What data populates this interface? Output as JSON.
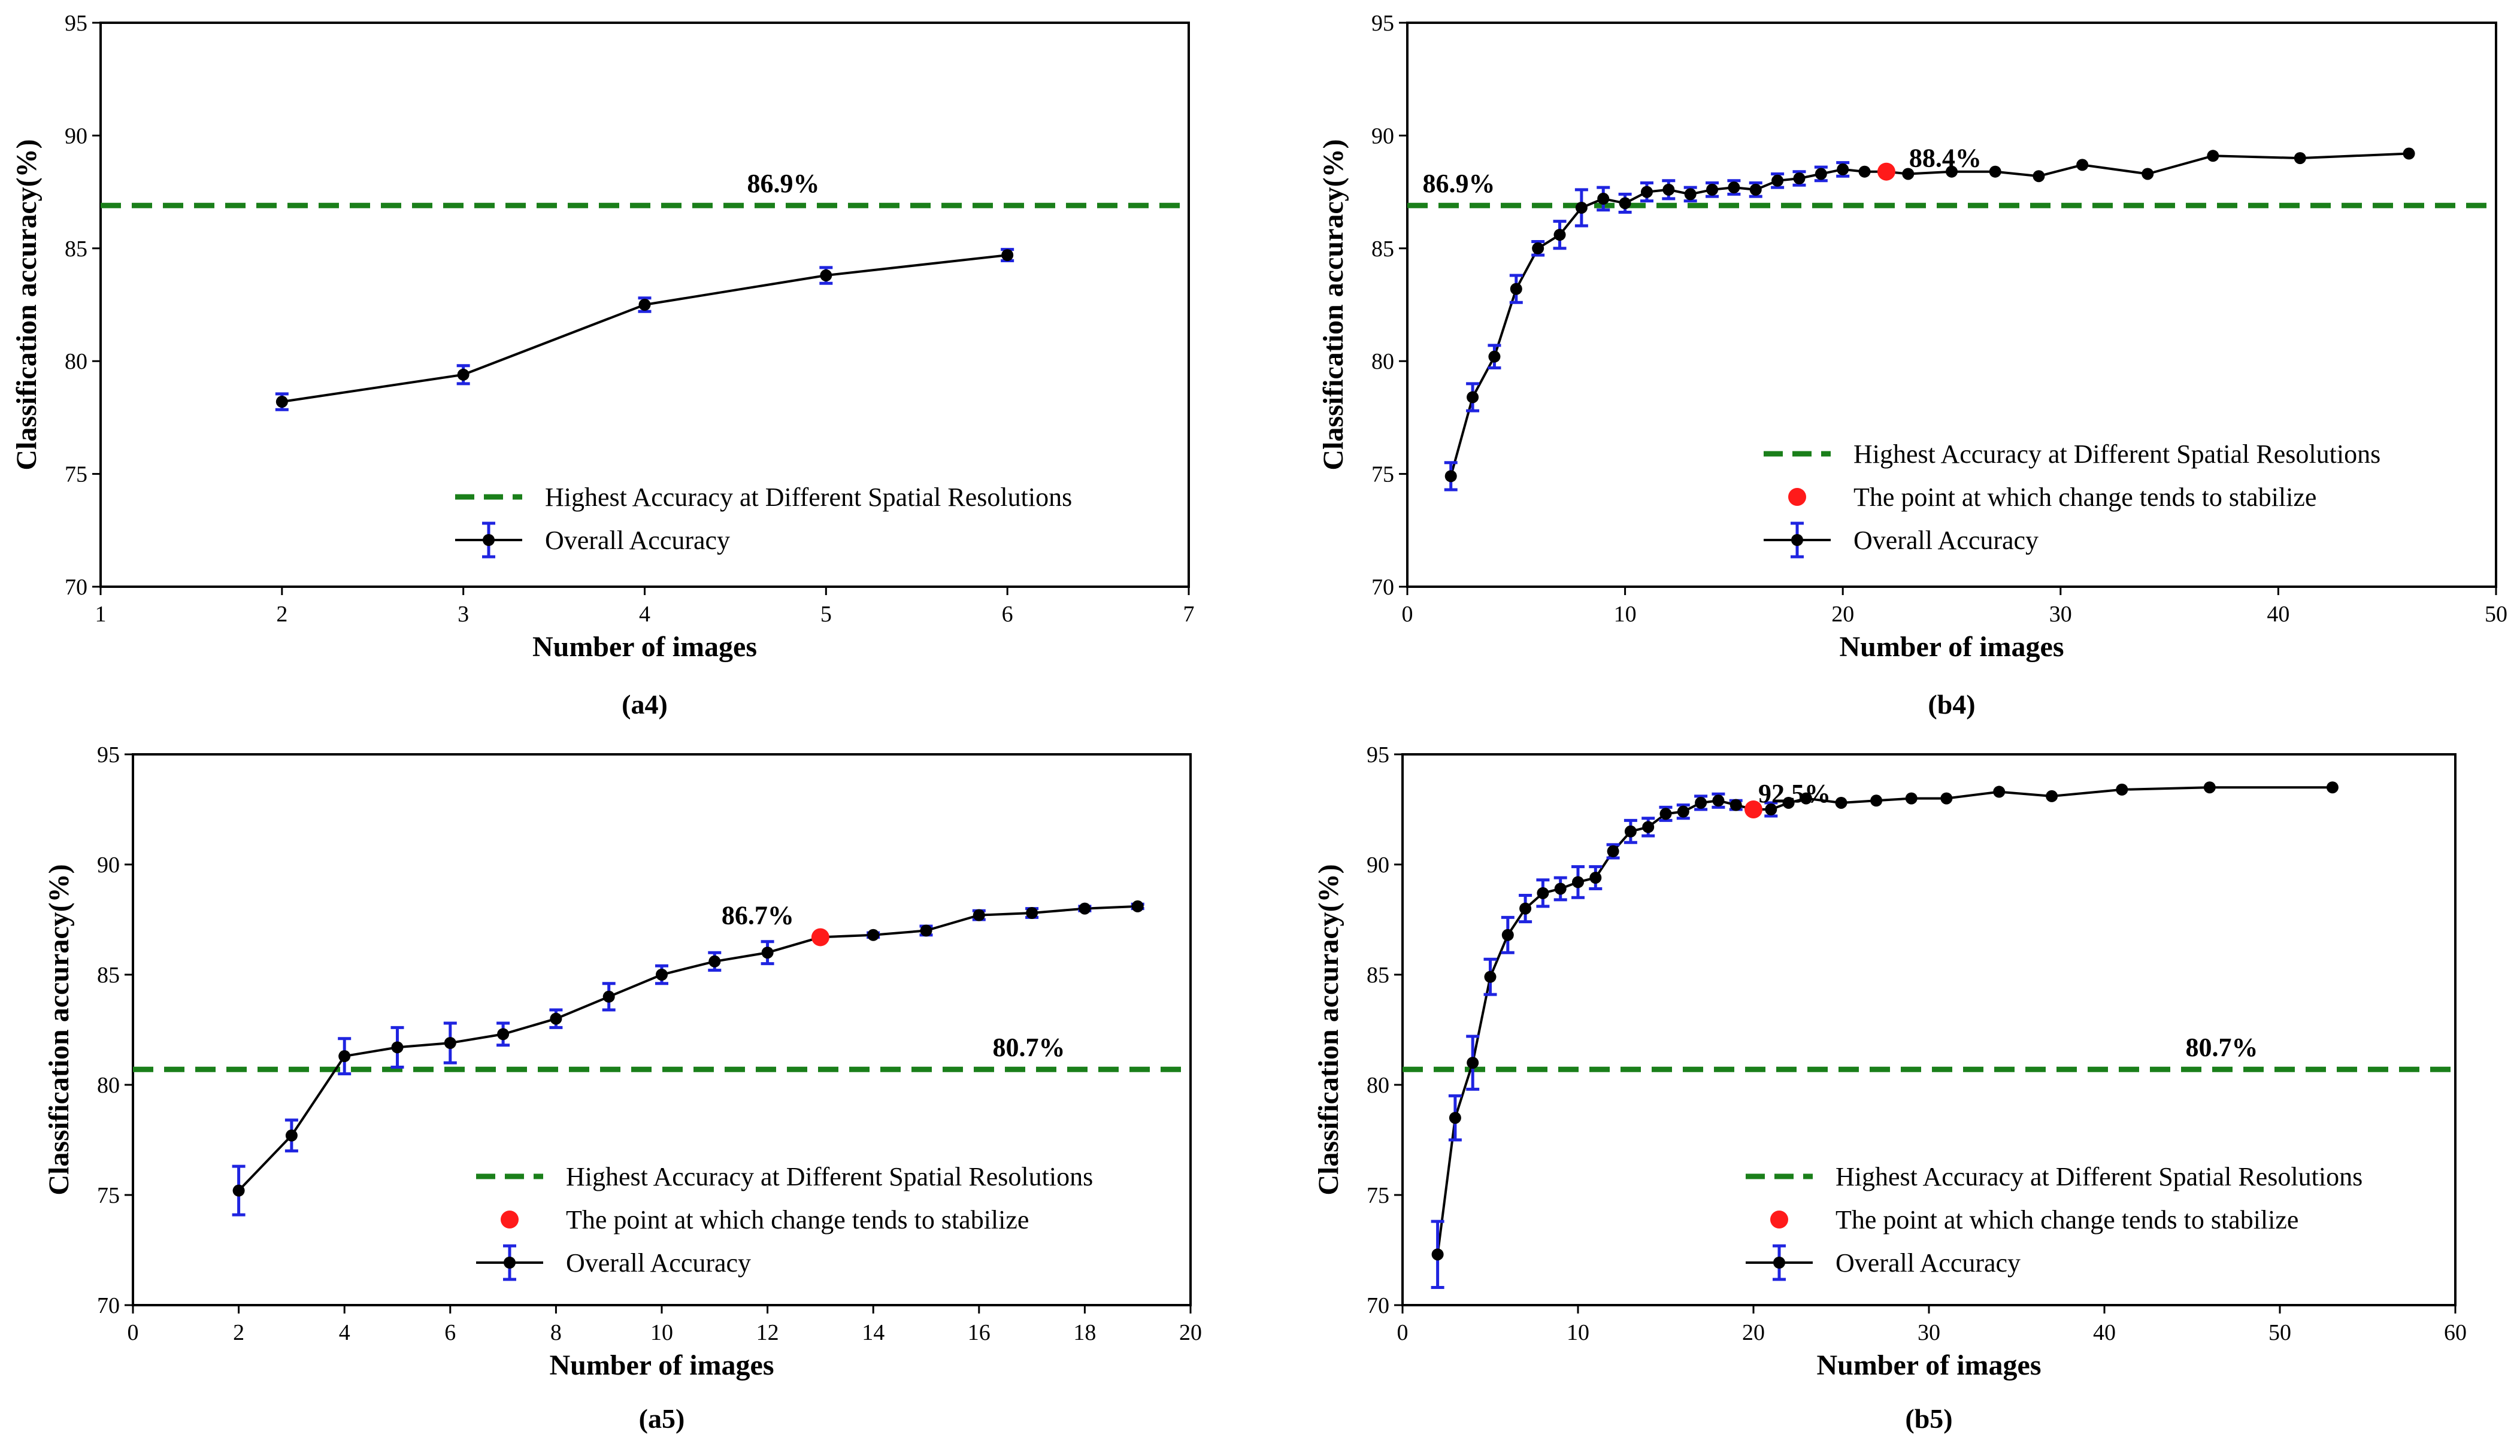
{
  "colors": {
    "reference_line": "#1a7f1a",
    "series_line": "#000000",
    "error_bar": "#1f24e0",
    "stable_point": "#ff1a1a"
  },
  "legend_labels": {
    "reference": "Highest Accuracy at Different Spatial Resolutions",
    "stable": "The point at which change tends to stabilize",
    "overall": "Overall Accuracy"
  },
  "chart_data": [
    {
      "id": "a4",
      "type": "line",
      "caption": "(a4)",
      "xlabel": "Number of images",
      "ylabel": "Classification accuracy(%)",
      "xlim": [
        1,
        7
      ],
      "ylim": [
        70,
        95
      ],
      "xticks": [
        1,
        2,
        3,
        4,
        5,
        6,
        7
      ],
      "yticks": [
        70,
        75,
        80,
        85,
        90,
        95
      ],
      "reference": {
        "value": 86.9,
        "label": "86.9%"
      },
      "series": [
        {
          "name": "Overall Accuracy",
          "x": [
            2,
            3,
            4,
            5,
            6
          ],
          "y": [
            78.2,
            79.4,
            82.5,
            83.8,
            84.7
          ],
          "err": [
            0.35,
            0.4,
            0.3,
            0.35,
            0.25
          ]
        }
      ],
      "legend": [
        "reference",
        "overall"
      ],
      "legend_position": "lower-right"
    },
    {
      "id": "b4",
      "type": "line",
      "caption": "(b4)",
      "xlabel": "Number of images",
      "ylabel": "Classification accuracy(%)",
      "xlim": [
        0,
        50
      ],
      "ylim": [
        70,
        95
      ],
      "xticks": [
        0,
        10,
        20,
        30,
        40,
        50
      ],
      "yticks": [
        70,
        75,
        80,
        85,
        90,
        95
      ],
      "reference": {
        "value": 86.9,
        "label": "86.9%"
      },
      "stable_point": {
        "x": 22,
        "y": 88.4,
        "label": "88.4%"
      },
      "series": [
        {
          "name": "Overall Accuracy",
          "x": [
            2,
            3,
            4,
            5,
            6,
            7,
            8,
            9,
            10,
            11,
            12,
            13,
            14,
            15,
            16,
            17,
            18,
            19,
            20,
            21,
            22,
            23,
            25,
            27,
            29,
            31,
            34,
            37,
            41,
            46
          ],
          "y": [
            74.9,
            78.4,
            80.2,
            83.2,
            85.0,
            85.6,
            86.8,
            87.2,
            87.0,
            87.5,
            87.6,
            87.4,
            87.6,
            87.7,
            87.6,
            88.0,
            88.1,
            88.3,
            88.5,
            88.4,
            88.4,
            88.3,
            88.4,
            88.4,
            88.2,
            88.7,
            88.3,
            89.1,
            89.0,
            89.2
          ],
          "err": [
            0.6,
            0.6,
            0.5,
            0.6,
            0.3,
            0.6,
            0.8,
            0.5,
            0.4,
            0.4,
            0.4,
            0.3,
            0.3,
            0.3,
            0.3,
            0.3,
            0.3,
            0.3,
            0.3,
            0,
            0,
            0,
            0,
            0,
            0,
            0,
            0,
            0,
            0,
            0
          ]
        }
      ],
      "legend": [
        "reference",
        "stable",
        "overall"
      ],
      "legend_position": "lower-right"
    },
    {
      "id": "a5",
      "type": "line",
      "caption": "(a5)",
      "xlabel": "Number of images",
      "ylabel": "Classification accuracy(%)",
      "xlim": [
        0,
        20
      ],
      "ylim": [
        70,
        95
      ],
      "xticks": [
        0,
        2,
        4,
        6,
        8,
        10,
        12,
        14,
        16,
        18,
        20
      ],
      "yticks": [
        70,
        75,
        80,
        85,
        90,
        95
      ],
      "reference": {
        "value": 80.7,
        "label": "80.7%"
      },
      "stable_point": {
        "x": 13,
        "y": 86.7,
        "label": "86.7%"
      },
      "series": [
        {
          "name": "Overall Accuracy",
          "x": [
            2,
            3,
            4,
            5,
            6,
            7,
            8,
            9,
            10,
            11,
            12,
            13,
            14,
            15,
            16,
            17,
            18,
            19
          ],
          "y": [
            75.2,
            77.7,
            81.3,
            81.7,
            81.9,
            82.3,
            83.0,
            84.0,
            85.0,
            85.6,
            86.0,
            86.7,
            86.8,
            87.0,
            87.7,
            87.8,
            88.0,
            88.1
          ],
          "err": [
            1.1,
            0.7,
            0.8,
            0.9,
            0.9,
            0.5,
            0.4,
            0.6,
            0.4,
            0.4,
            0.5,
            0,
            0.1,
            0.2,
            0.2,
            0.2,
            0.1,
            0.1
          ]
        }
      ],
      "legend": [
        "reference",
        "stable",
        "overall"
      ],
      "legend_position": "lower-right"
    },
    {
      "id": "b5",
      "type": "line",
      "caption": "(b5)",
      "xlabel": "Number of images",
      "ylabel": "Classification accuracy(%)",
      "xlim": [
        0,
        60
      ],
      "ylim": [
        70,
        95
      ],
      "xticks": [
        0,
        10,
        20,
        30,
        40,
        50,
        60
      ],
      "yticks": [
        70,
        75,
        80,
        85,
        90,
        95
      ],
      "reference": {
        "value": 80.7,
        "label": "80.7%"
      },
      "stable_point": {
        "x": 20,
        "y": 92.5,
        "label": "92.5%"
      },
      "series": [
        {
          "name": "Overall Accuracy",
          "x": [
            2,
            3,
            4,
            5,
            6,
            7,
            8,
            9,
            10,
            11,
            12,
            13,
            14,
            15,
            16,
            17,
            18,
            19,
            20,
            21,
            22,
            23,
            25,
            27,
            29,
            31,
            34,
            37,
            41,
            46,
            53
          ],
          "y": [
            72.3,
            78.5,
            81.0,
            84.9,
            86.8,
            88.0,
            88.7,
            88.9,
            89.2,
            89.4,
            90.6,
            91.5,
            91.7,
            92.3,
            92.4,
            92.8,
            92.9,
            92.7,
            92.5,
            92.5,
            92.8,
            93.0,
            92.8,
            92.9,
            93.0,
            93.0,
            93.3,
            93.1,
            93.4,
            93.5,
            93.5
          ],
          "err": [
            1.5,
            1.0,
            1.2,
            0.8,
            0.8,
            0.6,
            0.6,
            0.5,
            0.7,
            0.5,
            0.3,
            0.5,
            0.4,
            0.3,
            0.3,
            0.3,
            0.3,
            0.2,
            0,
            0.3,
            0,
            0,
            0,
            0,
            0,
            0,
            0,
            0,
            0,
            0,
            0
          ]
        }
      ],
      "legend": [
        "reference",
        "stable",
        "overall"
      ],
      "legend_position": "lower-right"
    }
  ]
}
